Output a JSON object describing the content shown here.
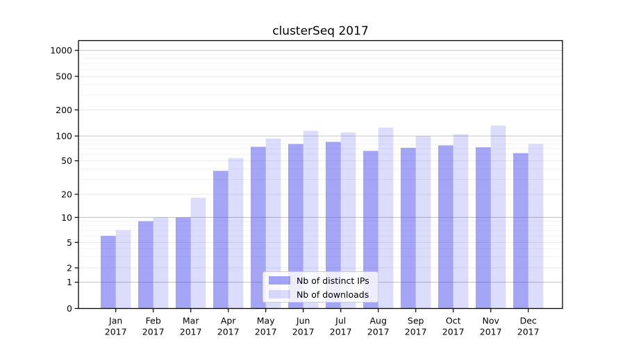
{
  "page": {
    "background": "#ffffff"
  },
  "chart_data": {
    "type": "bar",
    "title": "clusterSeq 2017",
    "xlabel": "",
    "ylabel": "",
    "yscale": "log-like with 0 baseline",
    "yticks": [
      0,
      1,
      2,
      5,
      10,
      20,
      50,
      100,
      200,
      500,
      1000
    ],
    "ylim": [
      0,
      1300
    ],
    "grid": true,
    "legend_position": "lower center",
    "categories": [
      "Jan",
      "Feb",
      "Mar",
      "Apr",
      "May",
      "Jun",
      "Jul",
      "Aug",
      "Sep",
      "Oct",
      "Nov",
      "Dec"
    ],
    "x_tick_second_line": "2017",
    "series": [
      {
        "name": "Nb of distinct IPs",
        "color": "rgba(82,82,238,0.52)",
        "values": [
          6,
          9,
          10,
          38,
          74,
          80,
          85,
          66,
          72,
          77,
          73,
          62
        ]
      },
      {
        "name": "Nb of downloads",
        "color": "rgba(82,82,238,0.20)",
        "values": [
          7,
          10,
          18,
          54,
          93,
          115,
          110,
          125,
          100,
          105,
          132,
          80
        ]
      }
    ],
    "colors": {
      "major_grid": "#c4c4c4",
      "labeled_grid": "#e8e8e8",
      "minor_grid": "#f3f3f3",
      "axis": "#000000",
      "text": "#000000"
    }
  }
}
